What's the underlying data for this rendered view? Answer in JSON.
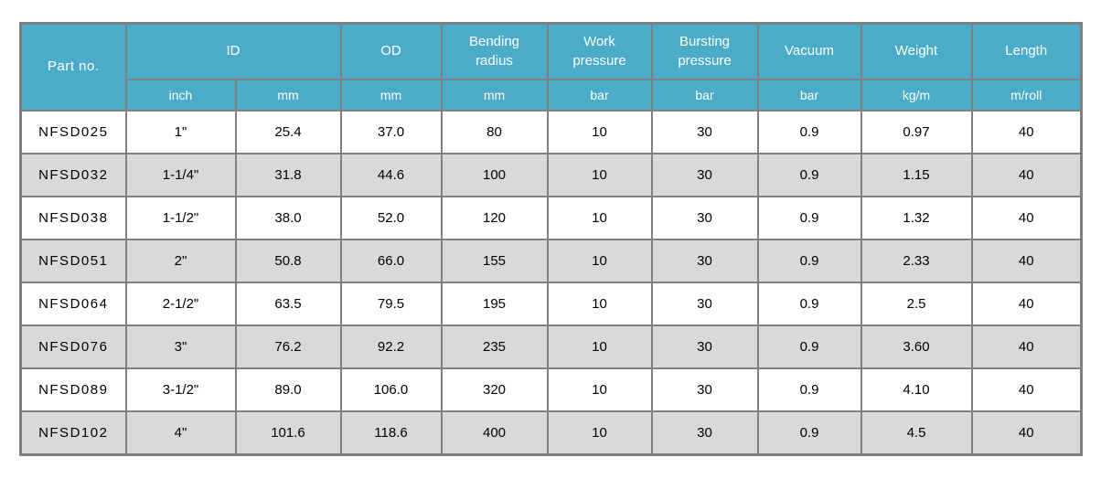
{
  "colors": {
    "header_bg": "#4aacc8",
    "header_text": "#ffffff",
    "alt_row_bg": "#d9d9d9",
    "row_bg": "#ffffff",
    "border": "#808080",
    "text": "#000000"
  },
  "table": {
    "header": {
      "part_no": "Part no.",
      "id": "ID",
      "od": "OD",
      "bending_radius": "Bending\nradius",
      "work_pressure": "Work\npressure",
      "bursting_pressure": "Bursting\npressure",
      "vacuum": "Vacuum",
      "weight": "Weight",
      "length": "Length",
      "units": {
        "id_inch": "inch",
        "id_mm": "mm",
        "od_mm": "mm",
        "bending_mm": "mm",
        "work_bar": "bar",
        "bursting_bar": "bar",
        "vacuum_bar": "bar",
        "weight_kgm": "kg/m",
        "length_mroll": "m/roll"
      }
    },
    "rows": [
      [
        "NFSD025",
        "1\"",
        "25.4",
        "37.0",
        "80",
        "10",
        "30",
        "0.9",
        "0.97",
        "40"
      ],
      [
        "NFSD032",
        "1-1/4\"",
        "31.8",
        "44.6",
        "100",
        "10",
        "30",
        "0.9",
        "1.15",
        "40"
      ],
      [
        "NFSD038",
        "1-1/2\"",
        "38.0",
        "52.0",
        "120",
        "10",
        "30",
        "0.9",
        "1.32",
        "40"
      ],
      [
        "NFSD051",
        "2\"",
        "50.8",
        "66.0",
        "155",
        "10",
        "30",
        "0.9",
        "2.33",
        "40"
      ],
      [
        "NFSD064",
        "2-1/2\"",
        "63.5",
        "79.5",
        "195",
        "10",
        "30",
        "0.9",
        "2.5",
        "40"
      ],
      [
        "NFSD076",
        "3\"",
        "76.2",
        "92.2",
        "235",
        "10",
        "30",
        "0.9",
        "3.60",
        "40"
      ],
      [
        "NFSD089",
        "3-1/2\"",
        "89.0",
        "106.0",
        "320",
        "10",
        "30",
        "0.9",
        "4.10",
        "40"
      ],
      [
        "NFSD102",
        "4\"",
        "101.6",
        "118.6",
        "400",
        "10",
        "30",
        "0.9",
        "4.5",
        "40"
      ]
    ]
  }
}
